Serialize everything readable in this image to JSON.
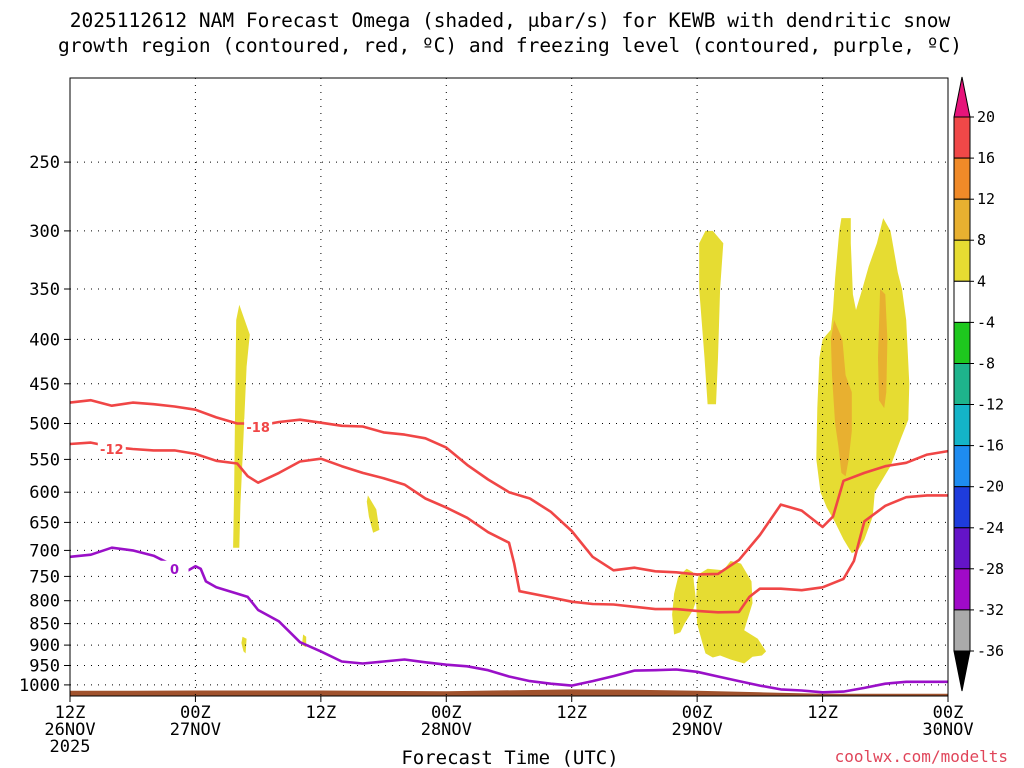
{
  "chart_data": {
    "type": "area",
    "title_line1": "2025112612 NAM Forecast Omega (shaded, μbar/s) for KEWB with dendritic snow",
    "title_line2": "growth region (contoured, red, ºC) and freezing level (contoured, purple, ºC)",
    "xlabel": "Forecast Time (UTC)",
    "ylabel": "",
    "credit": "coolwx.com/modelts",
    "x_unit": "hours since 2025-11-26 12Z",
    "xlim": [
      0,
      84
    ],
    "ylim": [
      1030,
      200
    ],
    "y_scale": "log-pressure",
    "y_ticks": [
      250,
      300,
      350,
      400,
      450,
      500,
      550,
      600,
      650,
      700,
      750,
      800,
      850,
      900,
      950,
      1000
    ],
    "x_ticks": [
      {
        "x": 0,
        "lines": [
          "12Z",
          "26NOV",
          "2025"
        ]
      },
      {
        "x": 12,
        "lines": [
          "00Z",
          "27NOV"
        ]
      },
      {
        "x": 24,
        "lines": [
          "12Z"
        ]
      },
      {
        "x": 36,
        "lines": [
          "00Z",
          "28NOV"
        ]
      },
      {
        "x": 48,
        "lines": [
          "12Z"
        ]
      },
      {
        "x": 60,
        "lines": [
          "00Z",
          "29NOV"
        ]
      },
      {
        "x": 72,
        "lines": [
          "12Z"
        ]
      },
      {
        "x": 84,
        "lines": [
          "00Z",
          "30NOV"
        ]
      }
    ],
    "colorbar": {
      "labels": [
        "20",
        "16",
        "12",
        "8",
        "4",
        "-4",
        "-8",
        "-12",
        "-16",
        "-20",
        "-24",
        "-28",
        "-32",
        "-36"
      ],
      "bands": [
        {
          "from": 16,
          "to": 20,
          "color": "#f04848"
        },
        {
          "from": 12,
          "to": 16,
          "color": "#f08a28"
        },
        {
          "from": 8,
          "to": 12,
          "color": "#e8b030"
        },
        {
          "from": 4,
          "to": 8,
          "color": "#e6dc32"
        },
        {
          "from": -4,
          "to": 4,
          "color": "#ffffff"
        },
        {
          "from": -8,
          "to": -4,
          "color": "#1ec81e"
        },
        {
          "from": -12,
          "to": -8,
          "color": "#1eb48c"
        },
        {
          "from": -16,
          "to": -12,
          "color": "#14b4c8"
        },
        {
          "from": -20,
          "to": -16,
          "color": "#1e8cf0"
        },
        {
          "from": -24,
          "to": -20,
          "color": "#1e3cdc"
        },
        {
          "from": -28,
          "to": -24,
          "color": "#6414c8"
        },
        {
          "from": -32,
          "to": -28,
          "color": "#a00ac8"
        },
        {
          "from": -36,
          "to": -32,
          "color": "#aaaaaa"
        }
      ],
      "top_triangle_color": "#e6147a",
      "bottom_triangle_color": "#000000"
    },
    "contours": [
      {
        "name": "-18",
        "color": "#f04646",
        "label": "-18",
        "points": [
          [
            0,
            473
          ],
          [
            2,
            470
          ],
          [
            4,
            477
          ],
          [
            6,
            473
          ],
          [
            8,
            475
          ],
          [
            10,
            478
          ],
          [
            12,
            482
          ],
          [
            14,
            492
          ],
          [
            16,
            500
          ],
          [
            17,
            500
          ],
          [
            18,
            503
          ],
          [
            20,
            498
          ],
          [
            22,
            495
          ],
          [
            24,
            499
          ],
          [
            26,
            503
          ],
          [
            28,
            504
          ],
          [
            30,
            512
          ],
          [
            32,
            515
          ],
          [
            34,
            520
          ],
          [
            36,
            533
          ],
          [
            38,
            558
          ],
          [
            40,
            580
          ],
          [
            42,
            600
          ],
          [
            44,
            610
          ],
          [
            46,
            632
          ],
          [
            48,
            665
          ],
          [
            50,
            712
          ],
          [
            52,
            738
          ],
          [
            54,
            733
          ],
          [
            56,
            740
          ],
          [
            58,
            742
          ],
          [
            60,
            746
          ],
          [
            62,
            745
          ],
          [
            64,
            718
          ],
          [
            66,
            672
          ],
          [
            68,
            620
          ],
          [
            70,
            630
          ],
          [
            72,
            658
          ],
          [
            73,
            640
          ],
          [
            74,
            582
          ],
          [
            76,
            570
          ],
          [
            78,
            560
          ],
          [
            80,
            555
          ],
          [
            82,
            543
          ],
          [
            84,
            538
          ]
        ],
        "label_at": [
          18,
          505
        ]
      },
      {
        "name": "-12",
        "color": "#f04646",
        "label": "-12",
        "points": [
          [
            0,
            528
          ],
          [
            2,
            526
          ],
          [
            4,
            532
          ],
          [
            6,
            535
          ],
          [
            8,
            537
          ],
          [
            10,
            537
          ],
          [
            12,
            542
          ],
          [
            14,
            552
          ],
          [
            16,
            556
          ],
          [
            17,
            575
          ],
          [
            18,
            585
          ],
          [
            20,
            570
          ],
          [
            22,
            553
          ],
          [
            24,
            549
          ],
          [
            26,
            560
          ],
          [
            28,
            570
          ],
          [
            30,
            578
          ],
          [
            32,
            588
          ],
          [
            34,
            610
          ],
          [
            36,
            625
          ],
          [
            38,
            642
          ],
          [
            40,
            667
          ],
          [
            42,
            686
          ],
          [
            42.5,
            725
          ],
          [
            43,
            780
          ],
          [
            46,
            793
          ],
          [
            48,
            802
          ],
          [
            50,
            807
          ],
          [
            52,
            808
          ],
          [
            54,
            813
          ],
          [
            56,
            818
          ],
          [
            58,
            818
          ],
          [
            60,
            822
          ],
          [
            62,
            825
          ],
          [
            64,
            824
          ],
          [
            65,
            792
          ],
          [
            66,
            775
          ],
          [
            68,
            775
          ],
          [
            70,
            778
          ],
          [
            72,
            772
          ],
          [
            74,
            755
          ],
          [
            75,
            720
          ],
          [
            76,
            648
          ],
          [
            78,
            622
          ],
          [
            80,
            608
          ],
          [
            82,
            605
          ],
          [
            84,
            605
          ]
        ],
        "label_at": [
          4,
          535
        ]
      },
      {
        "name": "0",
        "color": "#9a10c8",
        "label": "0",
        "points": [
          [
            0,
            712
          ],
          [
            2,
            708
          ],
          [
            4,
            695
          ],
          [
            6,
            700
          ],
          [
            8,
            710
          ],
          [
            10,
            730
          ],
          [
            11,
            742
          ],
          [
            12,
            730
          ],
          [
            12.5,
            735
          ],
          [
            13,
            760
          ],
          [
            14,
            772
          ],
          [
            16,
            785
          ],
          [
            17,
            792
          ],
          [
            18,
            820
          ],
          [
            20,
            845
          ],
          [
            22,
            893
          ],
          [
            24,
            915
          ],
          [
            26,
            940
          ],
          [
            28,
            945
          ],
          [
            30,
            940
          ],
          [
            32,
            935
          ],
          [
            34,
            942
          ],
          [
            36,
            948
          ],
          [
            38,
            952
          ],
          [
            40,
            962
          ],
          [
            42,
            978
          ],
          [
            44,
            990
          ],
          [
            46,
            997
          ],
          [
            48,
            1002
          ],
          [
            50,
            990
          ],
          [
            52,
            977
          ],
          [
            54,
            963
          ],
          [
            56,
            962
          ],
          [
            58,
            960
          ],
          [
            60,
            966
          ],
          [
            62,
            978
          ],
          [
            64,
            990
          ],
          [
            66,
            1002
          ],
          [
            68,
            1012
          ],
          [
            70,
            1015
          ],
          [
            72,
            1020
          ],
          [
            74,
            1018
          ],
          [
            76,
            1008
          ],
          [
            78,
            997
          ],
          [
            80,
            992
          ],
          [
            82,
            992
          ],
          [
            84,
            992
          ]
        ],
        "label_at": [
          10,
          735
        ]
      }
    ],
    "shaded_regions": [
      {
        "level": "4-8",
        "color": "#e6dc32",
        "points": [
          [
            16.2,
            365
          ],
          [
            17.2,
            395
          ],
          [
            16.9,
            430
          ],
          [
            16.5,
            550
          ],
          [
            16.3,
            620
          ],
          [
            16.2,
            695
          ],
          [
            15.6,
            695
          ],
          [
            15.7,
            600
          ],
          [
            15.8,
            480
          ],
          [
            15.9,
            380
          ]
        ]
      },
      {
        "level": "4-8",
        "color": "#e6dc32",
        "points": [
          [
            28.5,
            605
          ],
          [
            29.3,
            628
          ],
          [
            29.6,
            663
          ],
          [
            29.0,
            668
          ],
          [
            28.6,
            640
          ],
          [
            28.4,
            615
          ]
        ]
      },
      {
        "level": "4-8",
        "color": "#e6dc32",
        "points": [
          [
            16.5,
            880
          ],
          [
            16.9,
            885
          ],
          [
            16.8,
            920
          ],
          [
            16.6,
            915
          ],
          [
            16.4,
            895
          ]
        ]
      },
      {
        "level": "4-8",
        "color": "#e6dc32",
        "points": [
          [
            22.3,
            875
          ],
          [
            22.6,
            880
          ],
          [
            22.6,
            905
          ],
          [
            22.2,
            900
          ]
        ]
      },
      {
        "level": "4-8",
        "color": "#e6dc32",
        "points": [
          [
            61.5,
            300
          ],
          [
            62.5,
            310
          ],
          [
            62.2,
            350
          ],
          [
            62.0,
            420
          ],
          [
            61.8,
            475
          ],
          [
            61.0,
            475
          ],
          [
            60.7,
            420
          ],
          [
            60.2,
            350
          ],
          [
            60.2,
            310
          ],
          [
            60.8,
            300
          ]
        ]
      },
      {
        "level": "4-8",
        "color": "#e6dc32",
        "points": [
          [
            58.2,
            750
          ],
          [
            59,
            735
          ],
          [
            59.6,
            742
          ],
          [
            59.7,
            765
          ],
          [
            59.9,
            800
          ],
          [
            59.6,
            820
          ],
          [
            58.8,
            850
          ],
          [
            58.4,
            870
          ],
          [
            57.8,
            875
          ],
          [
            57.6,
            830
          ],
          [
            57.8,
            785
          ]
        ]
      },
      {
        "level": "4-8",
        "color": "#e6dc32",
        "points": [
          [
            60.2,
            745
          ],
          [
            61,
            735
          ],
          [
            62.5,
            738
          ],
          [
            63.2,
            720
          ],
          [
            64.2,
            725
          ],
          [
            65.2,
            760
          ],
          [
            65.3,
            805
          ],
          [
            64.5,
            865
          ],
          [
            65.8,
            885
          ],
          [
            66.6,
            915
          ],
          [
            66.2,
            925
          ],
          [
            65.3,
            928
          ],
          [
            64.5,
            945
          ],
          [
            63.2,
            935
          ],
          [
            62.2,
            925
          ],
          [
            61.5,
            930
          ],
          [
            60.8,
            920
          ],
          [
            60.5,
            895
          ],
          [
            60.0,
            850
          ],
          [
            59.9,
            800
          ],
          [
            60.0,
            760
          ]
        ]
      },
      {
        "level": "4-8",
        "color": "#e6dc32",
        "points": [
          [
            73.8,
            290
          ],
          [
            74.7,
            290
          ],
          [
            74.7,
            310
          ],
          [
            74.9,
            355
          ],
          [
            75.2,
            370
          ],
          [
            75.8,
            350
          ],
          [
            76.4,
            330
          ],
          [
            77.2,
            310
          ],
          [
            77.8,
            290
          ],
          [
            78.5,
            300
          ],
          [
            79.2,
            335
          ],
          [
            79.6,
            350
          ],
          [
            80.0,
            380
          ],
          [
            80.3,
            450
          ],
          [
            80.2,
            495
          ],
          [
            79.5,
            520
          ],
          [
            78.5,
            560
          ],
          [
            77.0,
            600
          ],
          [
            76.8,
            640
          ],
          [
            76.0,
            680
          ],
          [
            75.4,
            700
          ],
          [
            74.8,
            705
          ],
          [
            74.0,
            680
          ],
          [
            73.2,
            650
          ],
          [
            72.4,
            625
          ],
          [
            71.8,
            600
          ],
          [
            71.4,
            550
          ],
          [
            71.5,
            480
          ],
          [
            71.7,
            420
          ],
          [
            72.0,
            400
          ],
          [
            72.8,
            390
          ],
          [
            73.0,
            370
          ],
          [
            73.2,
            340
          ],
          [
            73.6,
            300
          ]
        ]
      },
      {
        "level": "8-12",
        "color": "#e8b030",
        "points": [
          [
            73.1,
            380
          ],
          [
            73.9,
            400
          ],
          [
            74.2,
            440
          ],
          [
            74.8,
            460
          ],
          [
            74.8,
            510
          ],
          [
            74.5,
            550
          ],
          [
            74.2,
            575
          ],
          [
            73.8,
            570
          ],
          [
            73.5,
            530
          ],
          [
            73.2,
            500
          ],
          [
            72.9,
            440
          ],
          [
            72.8,
            400
          ]
        ]
      },
      {
        "level": "8-12",
        "color": "#e8b030",
        "points": [
          [
            77.5,
            350
          ],
          [
            78.0,
            355
          ],
          [
            78.2,
            400
          ],
          [
            78.1,
            460
          ],
          [
            77.9,
            480
          ],
          [
            77.4,
            470
          ],
          [
            77.3,
            420
          ]
        ]
      }
    ],
    "ground_color": "#a0522d"
  }
}
